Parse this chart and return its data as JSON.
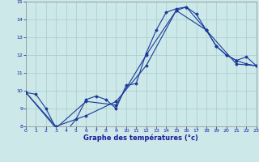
{
  "xlabel": "Graphe des températures (°c)",
  "bg_color": "#cce8e8",
  "grid_color": "#aacccc",
  "line_color": "#1a3a9a",
  "line1_x": [
    0,
    1,
    2,
    3,
    4,
    5,
    6,
    7,
    8,
    9,
    10,
    11,
    12,
    13,
    14,
    15,
    16,
    17,
    18,
    19,
    20,
    21,
    22,
    23
  ],
  "line1_y": [
    9.9,
    9.8,
    9.0,
    7.9,
    7.7,
    8.4,
    9.5,
    9.7,
    9.5,
    9.0,
    10.3,
    10.4,
    12.1,
    13.4,
    14.4,
    14.6,
    14.7,
    14.3,
    13.4,
    12.5,
    12.0,
    11.7,
    11.5,
    11.4
  ],
  "line2_x": [
    0,
    3,
    6,
    9,
    12,
    15,
    16,
    18,
    19,
    20,
    21,
    22,
    23
  ],
  "line2_y": [
    9.9,
    7.9,
    9.4,
    9.2,
    12.0,
    14.5,
    14.7,
    13.4,
    12.5,
    12.0,
    11.7,
    11.9,
    11.4
  ],
  "line3_x": [
    0,
    3,
    6,
    9,
    12,
    15,
    18,
    21,
    23
  ],
  "line3_y": [
    9.9,
    8.0,
    8.6,
    9.4,
    11.4,
    14.5,
    13.4,
    11.5,
    11.4
  ],
  "ylim": [
    8,
    15
  ],
  "xlim": [
    0,
    23
  ],
  "yticks": [
    8,
    9,
    10,
    11,
    12,
    13,
    14,
    15
  ],
  "xticks": [
    0,
    1,
    2,
    3,
    4,
    5,
    6,
    7,
    8,
    9,
    10,
    11,
    12,
    13,
    14,
    15,
    16,
    17,
    18,
    19,
    20,
    21,
    22,
    23
  ]
}
